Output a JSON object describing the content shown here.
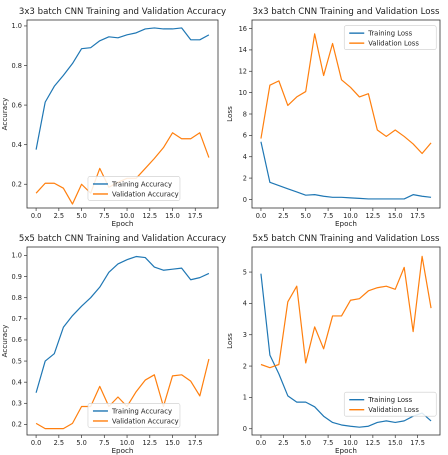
{
  "colors": {
    "training": "#1f77b4",
    "validation": "#ff7f0e",
    "axes": "#333333"
  },
  "chart_data": [
    {
      "type": "line",
      "title": "3x3 batch CNN Training and Validation Accuracy",
      "xlabel": "Epoch",
      "ylabel": "Accuracy",
      "xlim": [
        -1,
        20
      ],
      "ylim": [
        0.08,
        1.03
      ],
      "xticks": [
        0.0,
        2.5,
        5.0,
        7.5,
        10.0,
        12.5,
        15.0,
        17.5
      ],
      "xtick_labels": [
        "0.0",
        "2.5",
        "5.0",
        "7.5",
        "10.0",
        "12.5",
        "15.0",
        "17.5"
      ],
      "yticks": [
        0.2,
        0.4,
        0.6,
        0.8,
        1.0
      ],
      "ytick_labels": [
        "0.2",
        "0.4",
        "0.6",
        "0.8",
        "1.0"
      ],
      "legend_position": "lower-center",
      "x": [
        0,
        1,
        2,
        3,
        4,
        5,
        6,
        7,
        8,
        9,
        10,
        11,
        12,
        13,
        14,
        15,
        16,
        17,
        18,
        19
      ],
      "series": [
        {
          "name": "Training Accuracy",
          "color_key": "training",
          "values": [
            0.375,
            0.615,
            0.695,
            0.75,
            0.81,
            0.885,
            0.89,
            0.925,
            0.945,
            0.94,
            0.955,
            0.965,
            0.985,
            0.99,
            0.985,
            0.985,
            0.99,
            0.93,
            0.93,
            0.955
          ]
        },
        {
          "name": "Validation Accuracy",
          "color_key": "validation",
          "values": [
            0.155,
            0.205,
            0.205,
            0.18,
            0.1,
            0.2,
            0.155,
            0.28,
            0.185,
            0.21,
            0.23,
            0.23,
            0.28,
            0.33,
            0.385,
            0.46,
            0.43,
            0.43,
            0.46,
            0.335
          ]
        }
      ]
    },
    {
      "type": "line",
      "title": "3x3 batch CNN Training and Validation Loss",
      "xlabel": "Epoch",
      "ylabel": "Loss",
      "xlim": [
        -1,
        20
      ],
      "ylim": [
        -0.8,
        16.8
      ],
      "xticks": [
        0.0,
        2.5,
        5.0,
        7.5,
        10.0,
        12.5,
        15.0,
        17.5
      ],
      "xtick_labels": [
        "0.0",
        "2.5",
        "5.0",
        "7.5",
        "10.0",
        "12.5",
        "15.0",
        "17.5"
      ],
      "yticks": [
        0,
        2,
        4,
        6,
        8,
        10,
        12,
        14,
        16
      ],
      "ytick_labels": [
        "0",
        "2",
        "4",
        "6",
        "8",
        "10",
        "12",
        "14",
        "16"
      ],
      "legend_position": "upper-right",
      "x": [
        0,
        1,
        2,
        3,
        4,
        5,
        6,
        7,
        8,
        9,
        10,
        11,
        12,
        13,
        14,
        15,
        16,
        17,
        18,
        19
      ],
      "series": [
        {
          "name": "Training Loss",
          "color_key": "training",
          "values": [
            5.4,
            1.6,
            1.3,
            1.0,
            0.7,
            0.4,
            0.45,
            0.3,
            0.2,
            0.2,
            0.15,
            0.1,
            0.05,
            0.05,
            0.05,
            0.05,
            0.05,
            0.45,
            0.3,
            0.2
          ]
        },
        {
          "name": "Validation Loss",
          "color_key": "validation",
          "values": [
            5.7,
            10.7,
            11.1,
            8.8,
            9.6,
            10.1,
            15.5,
            11.6,
            14.6,
            11.2,
            10.5,
            9.6,
            9.9,
            6.5,
            5.9,
            6.5,
            5.9,
            5.2,
            4.3,
            5.3
          ]
        }
      ]
    },
    {
      "type": "line",
      "title": "5x5 batch CNN Training and Validation Accuracy",
      "xlabel": "Epoch",
      "ylabel": "Accuracy",
      "xlim": [
        -1,
        20
      ],
      "ylim": [
        0.15,
        1.04
      ],
      "xticks": [
        0.0,
        2.5,
        5.0,
        7.5,
        10.0,
        12.5,
        15.0,
        17.5
      ],
      "xtick_labels": [
        "0.0",
        "2.5",
        "5.0",
        "7.5",
        "10.0",
        "12.5",
        "15.0",
        "17.5"
      ],
      "yticks": [
        0.2,
        0.3,
        0.4,
        0.5,
        0.6,
        0.7,
        0.8,
        0.9,
        1.0
      ],
      "ytick_labels": [
        "0.2",
        "0.3",
        "0.4",
        "0.5",
        "0.6",
        "0.7",
        "0.8",
        "0.9",
        "1.0"
      ],
      "legend_position": "lower-center",
      "x": [
        0,
        1,
        2,
        3,
        4,
        5,
        6,
        7,
        8,
        9,
        10,
        11,
        12,
        13,
        14,
        15,
        16,
        17,
        18,
        19
      ],
      "series": [
        {
          "name": "Training Accuracy",
          "color_key": "training",
          "values": [
            0.35,
            0.5,
            0.535,
            0.66,
            0.715,
            0.76,
            0.8,
            0.85,
            0.92,
            0.96,
            0.98,
            0.995,
            0.99,
            0.945,
            0.93,
            0.935,
            0.94,
            0.885,
            0.895,
            0.915
          ]
        },
        {
          "name": "Validation Accuracy",
          "color_key": "validation",
          "values": [
            0.205,
            0.18,
            0.18,
            0.18,
            0.205,
            0.285,
            0.285,
            0.38,
            0.285,
            0.33,
            0.285,
            0.355,
            0.41,
            0.435,
            0.285,
            0.43,
            0.435,
            0.405,
            0.335,
            0.51
          ]
        }
      ]
    },
    {
      "type": "line",
      "title": "5x5 batch CNN Training and Validation Loss",
      "xlabel": "Epoch",
      "ylabel": "Loss",
      "xlim": [
        -1,
        20
      ],
      "ylim": [
        -0.2,
        5.8
      ],
      "xticks": [
        0.0,
        2.5,
        5.0,
        7.5,
        10.0,
        12.5,
        15.0,
        17.5
      ],
      "xtick_labels": [
        "0.0",
        "2.5",
        "5.0",
        "7.5",
        "10.0",
        "12.5",
        "15.0",
        "17.5"
      ],
      "yticks": [
        0,
        1,
        2,
        3,
        4,
        5
      ],
      "ytick_labels": [
        "0",
        "1",
        "2",
        "3",
        "4",
        "5"
      ],
      "legend_position": "lower-right",
      "x": [
        0,
        1,
        2,
        3,
        4,
        5,
        6,
        7,
        8,
        9,
        10,
        11,
        12,
        13,
        14,
        15,
        16,
        17,
        18,
        19
      ],
      "series": [
        {
          "name": "Training Loss",
          "color_key": "training",
          "values": [
            4.95,
            2.35,
            1.75,
            1.05,
            0.85,
            0.85,
            0.7,
            0.4,
            0.2,
            0.12,
            0.08,
            0.05,
            0.08,
            0.2,
            0.25,
            0.2,
            0.25,
            0.4,
            0.5,
            0.25
          ]
        },
        {
          "name": "Validation Loss",
          "color_key": "validation",
          "values": [
            2.05,
            1.95,
            2.05,
            4.05,
            4.55,
            2.1,
            3.25,
            2.55,
            3.6,
            3.6,
            4.1,
            4.15,
            4.4,
            4.5,
            4.55,
            4.45,
            5.15,
            3.1,
            5.5,
            3.85
          ]
        }
      ]
    }
  ]
}
